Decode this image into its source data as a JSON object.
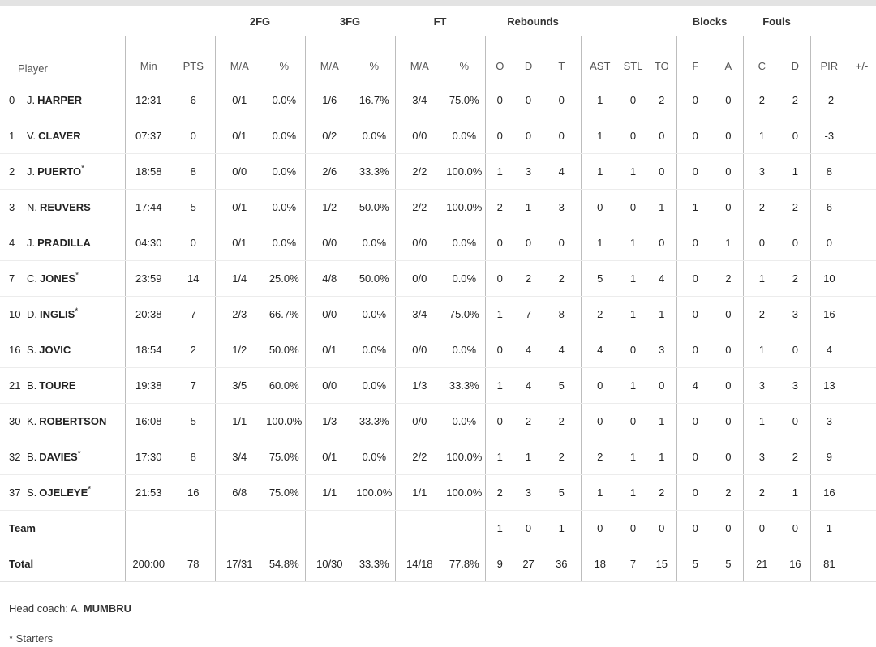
{
  "headers": {
    "groups": {
      "fg2": "2FG",
      "fg3": "3FG",
      "ft": "FT",
      "rebounds": "Rebounds",
      "blocks": "Blocks",
      "fouls": "Fouls"
    },
    "player": "Player",
    "min": "Min",
    "pts": "PTS",
    "fg2_ma": "M/A",
    "fg2_pct": "%",
    "fg3_ma": "M/A",
    "fg3_pct": "%",
    "ft_ma": "M/A",
    "ft_pct": "%",
    "reb_o": "O",
    "reb_d": "D",
    "reb_t": "T",
    "ast": "AST",
    "stl": "STL",
    "to": "TO",
    "blk_f": "F",
    "blk_a": "A",
    "foul_c": "C",
    "foul_d": "D",
    "pir": "PIR",
    "pm": "+/-"
  },
  "players": [
    {
      "num": "0",
      "init": "J.",
      "name": "HARPER",
      "star": "",
      "min": "12:31",
      "pts": "6",
      "fg2": "0/1",
      "fg2p": "0.0%",
      "fg3": "1/6",
      "fg3p": "16.7%",
      "ft": "3/4",
      "ftp": "75.0%",
      "ro": "0",
      "rd": "0",
      "rt": "0",
      "ast": "1",
      "stl": "0",
      "to": "2",
      "bf": "0",
      "ba": "0",
      "fc": "2",
      "fd": "2",
      "pir": "-2",
      "pm": ""
    },
    {
      "num": "1",
      "init": "V.",
      "name": "CLAVER",
      "star": "",
      "min": "07:37",
      "pts": "0",
      "fg2": "0/1",
      "fg2p": "0.0%",
      "fg3": "0/2",
      "fg3p": "0.0%",
      "ft": "0/0",
      "ftp": "0.0%",
      "ro": "0",
      "rd": "0",
      "rt": "0",
      "ast": "1",
      "stl": "0",
      "to": "0",
      "bf": "0",
      "ba": "0",
      "fc": "1",
      "fd": "0",
      "pir": "-3",
      "pm": ""
    },
    {
      "num": "2",
      "init": "J.",
      "name": "PUERTO",
      "star": "*",
      "min": "18:58",
      "pts": "8",
      "fg2": "0/0",
      "fg2p": "0.0%",
      "fg3": "2/6",
      "fg3p": "33.3%",
      "ft": "2/2",
      "ftp": "100.0%",
      "ro": "1",
      "rd": "3",
      "rt": "4",
      "ast": "1",
      "stl": "1",
      "to": "0",
      "bf": "0",
      "ba": "0",
      "fc": "3",
      "fd": "1",
      "pir": "8",
      "pm": ""
    },
    {
      "num": "3",
      "init": "N.",
      "name": "REUVERS",
      "star": "",
      "min": "17:44",
      "pts": "5",
      "fg2": "0/1",
      "fg2p": "0.0%",
      "fg3": "1/2",
      "fg3p": "50.0%",
      "ft": "2/2",
      "ftp": "100.0%",
      "ro": "2",
      "rd": "1",
      "rt": "3",
      "ast": "0",
      "stl": "0",
      "to": "1",
      "bf": "1",
      "ba": "0",
      "fc": "2",
      "fd": "2",
      "pir": "6",
      "pm": ""
    },
    {
      "num": "4",
      "init": "J.",
      "name": "PRADILLA",
      "star": "",
      "min": "04:30",
      "pts": "0",
      "fg2": "0/1",
      "fg2p": "0.0%",
      "fg3": "0/0",
      "fg3p": "0.0%",
      "ft": "0/0",
      "ftp": "0.0%",
      "ro": "0",
      "rd": "0",
      "rt": "0",
      "ast": "1",
      "stl": "1",
      "to": "0",
      "bf": "0",
      "ba": "1",
      "fc": "0",
      "fd": "0",
      "pir": "0",
      "pm": ""
    },
    {
      "num": "7",
      "init": "C.",
      "name": "JONES",
      "star": "*",
      "min": "23:59",
      "pts": "14",
      "fg2": "1/4",
      "fg2p": "25.0%",
      "fg3": "4/8",
      "fg3p": "50.0%",
      "ft": "0/0",
      "ftp": "0.0%",
      "ro": "0",
      "rd": "2",
      "rt": "2",
      "ast": "5",
      "stl": "1",
      "to": "4",
      "bf": "0",
      "ba": "2",
      "fc": "1",
      "fd": "2",
      "pir": "10",
      "pm": ""
    },
    {
      "num": "10",
      "init": "D.",
      "name": "INGLIS",
      "star": "*",
      "min": "20:38",
      "pts": "7",
      "fg2": "2/3",
      "fg2p": "66.7%",
      "fg3": "0/0",
      "fg3p": "0.0%",
      "ft": "3/4",
      "ftp": "75.0%",
      "ro": "1",
      "rd": "7",
      "rt": "8",
      "ast": "2",
      "stl": "1",
      "to": "1",
      "bf": "0",
      "ba": "0",
      "fc": "2",
      "fd": "3",
      "pir": "16",
      "pm": ""
    },
    {
      "num": "16",
      "init": "S.",
      "name": "JOVIC",
      "star": "",
      "min": "18:54",
      "pts": "2",
      "fg2": "1/2",
      "fg2p": "50.0%",
      "fg3": "0/1",
      "fg3p": "0.0%",
      "ft": "0/0",
      "ftp": "0.0%",
      "ro": "0",
      "rd": "4",
      "rt": "4",
      "ast": "4",
      "stl": "0",
      "to": "3",
      "bf": "0",
      "ba": "0",
      "fc": "1",
      "fd": "0",
      "pir": "4",
      "pm": ""
    },
    {
      "num": "21",
      "init": "B.",
      "name": "TOURE",
      "star": "",
      "min": "19:38",
      "pts": "7",
      "fg2": "3/5",
      "fg2p": "60.0%",
      "fg3": "0/0",
      "fg3p": "0.0%",
      "ft": "1/3",
      "ftp": "33.3%",
      "ro": "1",
      "rd": "4",
      "rt": "5",
      "ast": "0",
      "stl": "1",
      "to": "0",
      "bf": "4",
      "ba": "0",
      "fc": "3",
      "fd": "3",
      "pir": "13",
      "pm": ""
    },
    {
      "num": "30",
      "init": "K.",
      "name": "ROBERTSON",
      "star": "",
      "min": "16:08",
      "pts": "5",
      "fg2": "1/1",
      "fg2p": "100.0%",
      "fg3": "1/3",
      "fg3p": "33.3%",
      "ft": "0/0",
      "ftp": "0.0%",
      "ro": "0",
      "rd": "2",
      "rt": "2",
      "ast": "0",
      "stl": "0",
      "to": "1",
      "bf": "0",
      "ba": "0",
      "fc": "1",
      "fd": "0",
      "pir": "3",
      "pm": ""
    },
    {
      "num": "32",
      "init": "B.",
      "name": "DAVIES",
      "star": "*",
      "min": "17:30",
      "pts": "8",
      "fg2": "3/4",
      "fg2p": "75.0%",
      "fg3": "0/1",
      "fg3p": "0.0%",
      "ft": "2/2",
      "ftp": "100.0%",
      "ro": "1",
      "rd": "1",
      "rt": "2",
      "ast": "2",
      "stl": "1",
      "to": "1",
      "bf": "0",
      "ba": "0",
      "fc": "3",
      "fd": "2",
      "pir": "9",
      "pm": ""
    },
    {
      "num": "37",
      "init": "S.",
      "name": "OJELEYE",
      "star": "*",
      "min": "21:53",
      "pts": "16",
      "fg2": "6/8",
      "fg2p": "75.0%",
      "fg3": "1/1",
      "fg3p": "100.0%",
      "ft": "1/1",
      "ftp": "100.0%",
      "ro": "2",
      "rd": "3",
      "rt": "5",
      "ast": "1",
      "stl": "1",
      "to": "2",
      "bf": "0",
      "ba": "2",
      "fc": "2",
      "fd": "1",
      "pir": "16",
      "pm": ""
    }
  ],
  "team": {
    "label": "Team",
    "min": "",
    "pts": "",
    "fg2": "",
    "fg2p": "",
    "fg3": "",
    "fg3p": "",
    "ft": "",
    "ftp": "",
    "ro": "1",
    "rd": "0",
    "rt": "1",
    "ast": "0",
    "stl": "0",
    "to": "0",
    "bf": "0",
    "ba": "0",
    "fc": "0",
    "fd": "0",
    "pir": "1",
    "pm": ""
  },
  "total": {
    "label": "Total",
    "min": "200:00",
    "pts": "78",
    "fg2": "17/31",
    "fg2p": "54.8%",
    "fg3": "10/30",
    "fg3p": "33.3%",
    "ft": "14/18",
    "ftp": "77.8%",
    "ro": "9",
    "rd": "27",
    "rt": "36",
    "ast": "18",
    "stl": "7",
    "to": "15",
    "bf": "5",
    "ba": "5",
    "fc": "21",
    "fd": "16",
    "pir": "81",
    "pm": ""
  },
  "footer": {
    "coach_label": "Head coach:",
    "coach_init": "A.",
    "coach_name": "MUMBRU",
    "starters_note": "* Starters"
  }
}
